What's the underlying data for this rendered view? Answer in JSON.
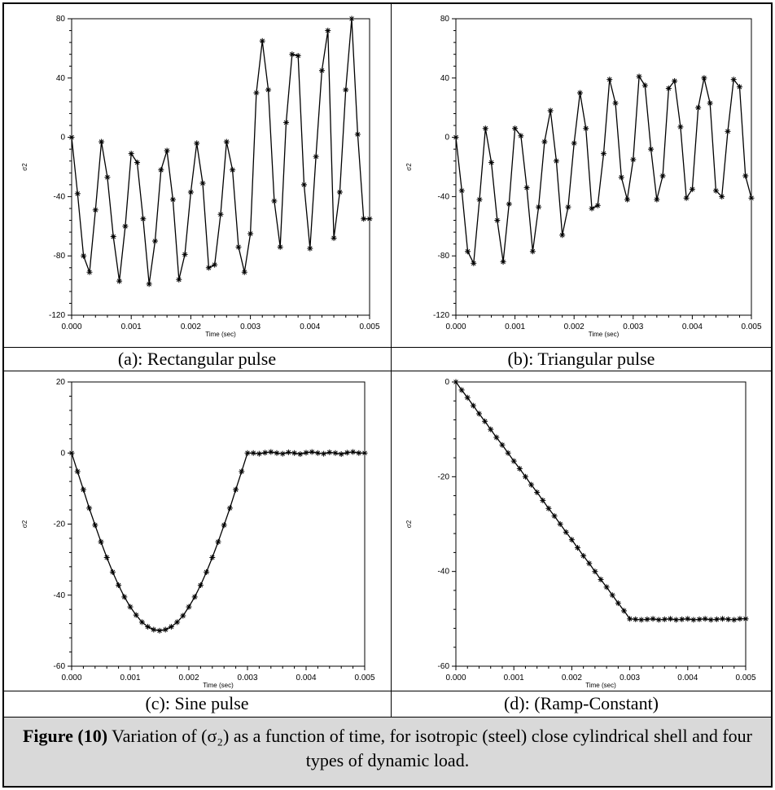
{
  "figure": {
    "caption_label": "Figure (10)",
    "caption_text": " Variation of (σ₂) as a function of time, for isotropic (steel) close cylindrical shell and four types of dynamic load."
  },
  "chart_data": [
    {
      "type": "line",
      "caption": "(a): Rectangular pulse",
      "xlabel": "Time (sec)",
      "ylabel": "σ2",
      "xlim": [
        0,
        0.005
      ],
      "ylim": [
        -120,
        80
      ],
      "xticks": [
        "0.000",
        "0.001",
        "0.002",
        "0.003",
        "0.004",
        "0.005"
      ],
      "yticks": [
        "80",
        "40",
        "0",
        "-40",
        "-80",
        "-120"
      ],
      "marker": "asterisk",
      "x": [
        0,
        0.0001,
        0.0002,
        0.0003,
        0.0004,
        0.0005,
        0.0006,
        0.0007,
        0.0008,
        0.0009,
        0.001,
        0.0011,
        0.0012,
        0.0013,
        0.0014,
        0.0015,
        0.0016,
        0.0017,
        0.0018,
        0.0019,
        0.002,
        0.0021,
        0.0022,
        0.0023,
        0.0024,
        0.0025,
        0.0026,
        0.0027,
        0.0028,
        0.0029,
        0.003,
        0.0031,
        0.0032,
        0.0033,
        0.0034,
        0.0035,
        0.0036,
        0.0037,
        0.0038,
        0.0039,
        0.004,
        0.0041,
        0.0042,
        0.0043,
        0.0044,
        0.0045,
        0.0046,
        0.0047,
        0.0048,
        0.0049,
        0.005
      ],
      "y": [
        0,
        -38,
        -80,
        -91,
        -49,
        -3,
        -27,
        -67,
        -97,
        -60,
        -11,
        -17,
        -55,
        -99,
        -70,
        -22,
        -9,
        -42,
        -96,
        -79,
        -37,
        -4,
        -31,
        -88,
        -86,
        -52,
        -3,
        -22,
        -74,
        -91,
        -65,
        30,
        65,
        32,
        -43,
        -74,
        10,
        56,
        55,
        -32,
        -75,
        -13,
        45,
        72,
        -68,
        -37,
        32,
        80,
        2,
        -55,
        -55
      ]
    },
    {
      "type": "line",
      "caption": "(b): Triangular pulse",
      "xlabel": "Time (sec)",
      "ylabel": "σ2",
      "xlim": [
        0,
        0.005
      ],
      "ylim": [
        -120,
        80
      ],
      "xticks": [
        "0.000",
        "0.001",
        "0.002",
        "0.003",
        "0.004",
        "0.005"
      ],
      "yticks": [
        "80",
        "40",
        "0",
        "-40",
        "-80",
        "-120"
      ],
      "marker": "asterisk",
      "x": [
        0,
        0.0001,
        0.0002,
        0.0003,
        0.0004,
        0.0005,
        0.0006,
        0.0007,
        0.0008,
        0.0009,
        0.001,
        0.0011,
        0.0012,
        0.0013,
        0.0014,
        0.0015,
        0.0016,
        0.0017,
        0.0018,
        0.0019,
        0.002,
        0.0021,
        0.0022,
        0.0023,
        0.0024,
        0.0025,
        0.0026,
        0.0027,
        0.0028,
        0.0029,
        0.003,
        0.0031,
        0.0032,
        0.0033,
        0.0034,
        0.0035,
        0.0036,
        0.0037,
        0.0038,
        0.0039,
        0.004,
        0.0041,
        0.0042,
        0.0043,
        0.0044,
        0.0045,
        0.0046,
        0.0047,
        0.0048,
        0.0049,
        0.005
      ],
      "y": [
        0,
        -36,
        -77,
        -85,
        -42,
        6,
        -17,
        -56,
        -84,
        -45,
        6,
        1,
        -34,
        -77,
        -47,
        -3,
        18,
        -16,
        -66,
        -47,
        -4,
        30,
        6,
        -48,
        -46,
        -11,
        39,
        23,
        -27,
        -42,
        -15,
        41,
        35,
        -8,
        -42,
        -26,
        33,
        38,
        7,
        -41,
        -35,
        20,
        40,
        23,
        -36,
        -40,
        4,
        39,
        34,
        -26,
        -41
      ]
    },
    {
      "type": "line",
      "caption": "(c): Sine pulse",
      "xlabel": "Time (sec)",
      "ylabel": "σ2",
      "xlim": [
        0,
        0.005
      ],
      "ylim": [
        -60,
        20
      ],
      "xticks": [
        "0.000",
        "0.001",
        "0.002",
        "0.003",
        "0.004",
        "0.005"
      ],
      "yticks": [
        "20",
        "0",
        "-20",
        "-40",
        "-60"
      ],
      "marker": "asterisk",
      "x": [
        0,
        0.0001,
        0.0002,
        0.0003,
        0.0004,
        0.0005,
        0.0006,
        0.0007,
        0.0008,
        0.0009,
        0.001,
        0.0011,
        0.0012,
        0.0013,
        0.0014,
        0.0015,
        0.0016,
        0.0017,
        0.0018,
        0.0019,
        0.002,
        0.0021,
        0.0022,
        0.0023,
        0.0024,
        0.0025,
        0.0026,
        0.0027,
        0.0028,
        0.0029,
        0.003,
        0.0031,
        0.0032,
        0.0033,
        0.0034,
        0.0035,
        0.0036,
        0.0037,
        0.0038,
        0.0039,
        0.004,
        0.0041,
        0.0042,
        0.0043,
        0.0044,
        0.0045,
        0.0046,
        0.0047,
        0.0048,
        0.0049,
        0.005
      ],
      "y": [
        0,
        -5.2,
        -10.3,
        -15.5,
        -20.3,
        -25,
        -29.4,
        -33.5,
        -37.2,
        -40.5,
        -43.3,
        -45.6,
        -47.6,
        -48.9,
        -49.7,
        -50,
        -49.7,
        -48.9,
        -47.6,
        -45.8,
        -43.3,
        -40.5,
        -37.2,
        -33.5,
        -29.4,
        -25,
        -20.3,
        -15.5,
        -10.3,
        -5.2,
        0,
        0,
        -0.2,
        0.1,
        0.3,
        0,
        -0.2,
        0.2,
        0,
        -0.3,
        0.1,
        0.3,
        0,
        -0.2,
        0.2,
        0,
        -0.3,
        0.1,
        0.3,
        0,
        0
      ]
    },
    {
      "type": "line",
      "caption": "(d): (Ramp-Constant)",
      "xlabel": "Time (sec)",
      "ylabel": "σ2",
      "xlim": [
        0,
        0.005
      ],
      "ylim": [
        -60,
        0
      ],
      "xticks": [
        "0.000",
        "0.001",
        "0.002",
        "0.003",
        "0.004",
        "0.005"
      ],
      "yticks": [
        "0",
        "-20",
        "-40",
        "-60"
      ],
      "marker": "asterisk",
      "x": [
        0,
        0.0001,
        0.0002,
        0.0003,
        0.0004,
        0.0005,
        0.0006,
        0.0007,
        0.0008,
        0.0009,
        0.001,
        0.0011,
        0.0012,
        0.0013,
        0.0014,
        0.0015,
        0.0016,
        0.0017,
        0.0018,
        0.0019,
        0.002,
        0.0021,
        0.0022,
        0.0023,
        0.0024,
        0.0025,
        0.0026,
        0.0027,
        0.0028,
        0.0029,
        0.003,
        0.0031,
        0.0032,
        0.0033,
        0.0034,
        0.0035,
        0.0036,
        0.0037,
        0.0038,
        0.0039,
        0.004,
        0.0041,
        0.0042,
        0.0043,
        0.0044,
        0.0045,
        0.0046,
        0.0047,
        0.0048,
        0.0049,
        0.005
      ],
      "y": [
        0,
        -1.7,
        -3.3,
        -5,
        -6.7,
        -8.3,
        -10,
        -11.7,
        -13.3,
        -15,
        -16.7,
        -18.3,
        -20,
        -21.7,
        -23.3,
        -25,
        -26.7,
        -28.3,
        -30,
        -31.7,
        -33.3,
        -35,
        -36.7,
        -38.3,
        -40,
        -41.7,
        -43.3,
        -45,
        -46.7,
        -48.3,
        -50,
        -50.1,
        -50.2,
        -50.1,
        -50,
        -50.2,
        -50.1,
        -50,
        -50.2,
        -50.1,
        -50,
        -50.2,
        -50.1,
        -50,
        -50.2,
        -50.1,
        -50,
        -50.1,
        -50.2,
        -50,
        -50
      ]
    }
  ]
}
